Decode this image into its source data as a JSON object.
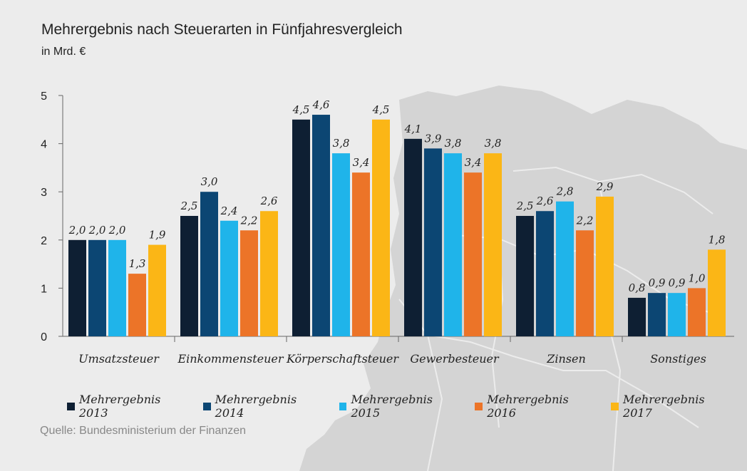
{
  "title": "Mehrergebnis nach Steuerarten in Fünfjahresvergleich",
  "subtitle": "in Mrd. €",
  "source": "Quelle: Bundesministerium der Finanzen",
  "colors": {
    "s2013": "#0e1f33",
    "s2014": "#0c4673",
    "s2015": "#1fb4ea",
    "s2016": "#ec7428",
    "s2017": "#fbb616",
    "map": "#d3d3d3",
    "background": "#ececec"
  },
  "chart_data": {
    "type": "bar",
    "title": "Mehrergebnis nach Steuerarten in Fünfjahresvergleich",
    "ylabel": "in Mrd. €",
    "xlabel": "",
    "ylim": [
      0,
      5
    ],
    "yticks": [
      0,
      1,
      2,
      3,
      4,
      5
    ],
    "categories": [
      "Umsatzsteuer",
      "Einkommensteuer",
      "Körperschaftsteuer",
      "Gewerbesteuer",
      "Zinsen",
      "Sonstiges"
    ],
    "series": [
      {
        "name": "Mehrergebnis 2013",
        "color": "#0e1f33",
        "values": [
          2.0,
          2.5,
          4.5,
          4.1,
          2.5,
          0.8
        ]
      },
      {
        "name": "Mehrergebnis 2014",
        "color": "#0c4673",
        "values": [
          2.0,
          3.0,
          4.6,
          3.9,
          2.6,
          0.9
        ]
      },
      {
        "name": "Mehrergebnis 2015",
        "color": "#1fb4ea",
        "values": [
          2.0,
          2.4,
          3.8,
          3.8,
          2.8,
          0.9
        ]
      },
      {
        "name": "Mehrergebnis 2016",
        "color": "#ec7428",
        "values": [
          1.3,
          2.2,
          3.4,
          3.4,
          2.2,
          1.0
        ]
      },
      {
        "name": "Mehrergebnis 2017",
        "color": "#fbb616",
        "values": [
          1.9,
          2.6,
          4.5,
          3.8,
          2.9,
          1.8
        ]
      }
    ],
    "grid": false,
    "legend_position": "bottom",
    "data_labels": true
  }
}
